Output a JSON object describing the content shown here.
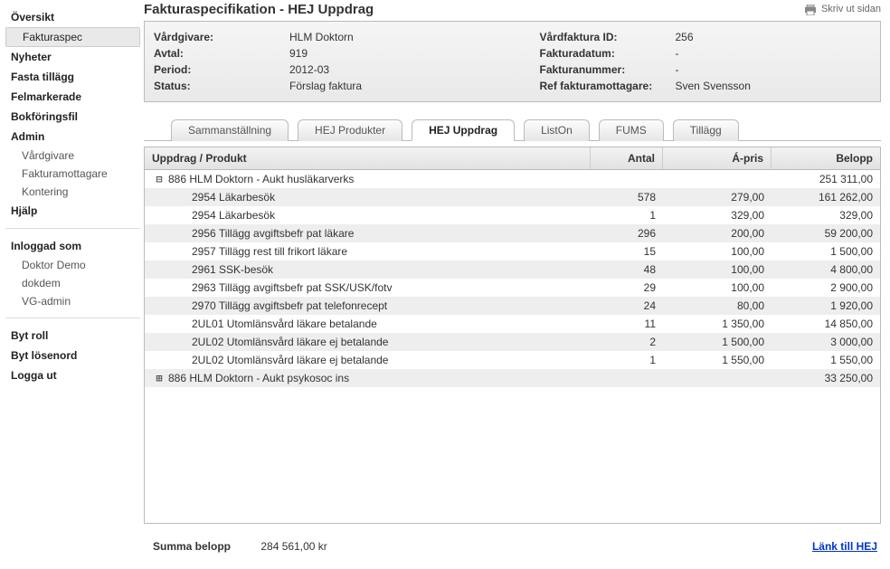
{
  "print_label": "Skriv ut sidan",
  "page_title": "Fakturaspecifikation - HEJ Uppdrag",
  "sidebar": {
    "oversikt": "Översikt",
    "fakturaspec": "Fakturaspec",
    "nyheter": "Nyheter",
    "fasta_tillagg": "Fasta tillägg",
    "felmarkerade": "Felmarkerade",
    "bokforingsfil": "Bokföringsfil",
    "admin": "Admin",
    "admin_vardgivare": "Vårdgivare",
    "admin_fakturamottagare": "Fakturamottagare",
    "admin_kontering": "Kontering",
    "hjalp": "Hjälp",
    "inloggad_som": "Inloggad som",
    "user1": "Doktor Demo",
    "user2": "dokdem",
    "user3": "VG-admin",
    "byt_roll": "Byt roll",
    "byt_losenord": "Byt lösenord",
    "logga_ut": "Logga ut"
  },
  "info": {
    "left": {
      "vardgivare_l": "Vårdgivare:",
      "vardgivare_v": "HLM Doktorn",
      "avtal_l": "Avtal:",
      "avtal_v": "919",
      "period_l": "Period:",
      "period_v": "2012-03",
      "status_l": "Status:",
      "status_v": "Förslag faktura"
    },
    "right": {
      "vfid_l": "Vårdfaktura ID:",
      "vfid_v": "256",
      "fdatum_l": "Fakturadatum:",
      "fdatum_v": "-",
      "fnummer_l": "Fakturanummer:",
      "fnummer_v": "-",
      "ref_l": "Ref fakturamottagare:",
      "ref_v": "Sven Svensson"
    }
  },
  "tabs": {
    "t0": "Sammanställning",
    "t1": "HEJ Produkter",
    "t2": "HEJ Uppdrag",
    "t3": "ListOn",
    "t4": "FUMS",
    "t5": "Tillägg"
  },
  "grid": {
    "headers": {
      "name": "Uppdrag / Produkt",
      "antal": "Antal",
      "apris": "Á-pris",
      "belopp": "Belopp"
    },
    "rows": [
      {
        "alt": false,
        "level": 1,
        "toggle": "⊟",
        "name": "886 HLM Doktorn - Aukt husläkarverks",
        "antal": "",
        "apris": "",
        "belopp": "251 311,00"
      },
      {
        "alt": true,
        "level": 2,
        "toggle": "",
        "name": "2954 Läkarbesök",
        "antal": "578",
        "apris": "279,00",
        "belopp": "161 262,00"
      },
      {
        "alt": false,
        "level": 2,
        "toggle": "",
        "name": "2954 Läkarbesök",
        "antal": "1",
        "apris": "329,00",
        "belopp": "329,00"
      },
      {
        "alt": true,
        "level": 2,
        "toggle": "",
        "name": "2956 Tillägg avgiftsbefr pat läkare",
        "antal": "296",
        "apris": "200,00",
        "belopp": "59 200,00"
      },
      {
        "alt": false,
        "level": 2,
        "toggle": "",
        "name": "2957 Tillägg rest till frikort läkare",
        "antal": "15",
        "apris": "100,00",
        "belopp": "1 500,00"
      },
      {
        "alt": true,
        "level": 2,
        "toggle": "",
        "name": "2961 SSK-besök",
        "antal": "48",
        "apris": "100,00",
        "belopp": "4 800,00"
      },
      {
        "alt": false,
        "level": 2,
        "toggle": "",
        "name": "2963 Tillägg avgiftsbefr pat SSK/USK/fotv",
        "antal": "29",
        "apris": "100,00",
        "belopp": "2 900,00"
      },
      {
        "alt": true,
        "level": 2,
        "toggle": "",
        "name": "2970 Tillägg avgiftsbefr pat telefonrecept",
        "antal": "24",
        "apris": "80,00",
        "belopp": "1 920,00"
      },
      {
        "alt": false,
        "level": 2,
        "toggle": "",
        "name": "2UL01 Utomlänsvård läkare betalande",
        "antal": "11",
        "apris": "1 350,00",
        "belopp": "14 850,00"
      },
      {
        "alt": true,
        "level": 2,
        "toggle": "",
        "name": "2UL02 Utomlänsvård läkare ej betalande",
        "antal": "2",
        "apris": "1 500,00",
        "belopp": "3 000,00"
      },
      {
        "alt": false,
        "level": 2,
        "toggle": "",
        "name": "2UL02 Utomlänsvård läkare ej betalande",
        "antal": "1",
        "apris": "1 550,00",
        "belopp": "1 550,00"
      },
      {
        "alt": true,
        "level": 1,
        "toggle": "⊞",
        "name": "886 HLM Doktorn - Aukt psykosoc ins",
        "antal": "",
        "apris": "",
        "belopp": "33 250,00"
      }
    ]
  },
  "footer": {
    "sum_label": "Summa belopp",
    "sum_value": "284 561,00 kr",
    "link_hej": "Länk till HEJ"
  }
}
